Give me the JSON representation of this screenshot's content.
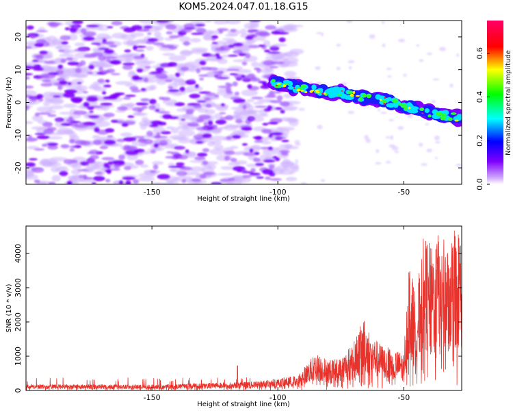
{
  "title": "KOM5.2024.047.01.18.G15",
  "colors": {
    "snr_line": "#e8322c",
    "track_core": "#ffef00",
    "background_blobs": "#7f00ff"
  },
  "chart_data": [
    {
      "type": "heatmap",
      "xlabel": "Height of straight line (km)",
      "ylabel": "Frequency (Hz)",
      "xlim": [
        -200,
        -27
      ],
      "ylim": [
        -25,
        25
      ],
      "xticks": [
        "-150",
        "-100",
        "-50"
      ],
      "xtick_values": [
        -150,
        -100,
        -50
      ],
      "yticks": [
        "20",
        "10",
        "0",
        "-10",
        "-20"
      ],
      "ytick_values": [
        20,
        10,
        0,
        -10,
        -20
      ],
      "grid": false,
      "colorbar": {
        "label": "Normalized spectral amplitude",
        "range": [
          0.0,
          0.75
        ],
        "ticks": [
          "0.0",
          "0.2",
          "0.4",
          "0.6"
        ],
        "tick_values": [
          0.0,
          0.2,
          0.4,
          0.6
        ]
      },
      "track": {
        "x": [
          -102,
          -95,
          -90,
          -85,
          -80,
          -75,
          -70,
          -65,
          -60,
          -55,
          -50,
          -45,
          -40,
          -35,
          -30,
          -27
        ],
        "y": [
          6,
          5,
          4,
          3.5,
          3,
          3,
          2,
          1.5,
          1,
          0,
          -1,
          -2,
          -3,
          -4,
          -4.5,
          -5
        ]
      }
    },
    {
      "type": "line",
      "xlabel": "Height of straight line (km)",
      "ylabel": "SNR (10 * v/v)",
      "xlim": [
        -200,
        -27
      ],
      "ylim": [
        0,
        4800
      ],
      "xticks": [
        "-150",
        "-100",
        "-50"
      ],
      "xtick_values": [
        -150,
        -100,
        -50
      ],
      "yticks": [
        "0",
        "1000",
        "2000",
        "3000",
        "4000"
      ],
      "ytick_values": [
        0,
        1000,
        2000,
        3000,
        4000
      ],
      "grid": false,
      "envelope": {
        "x": [
          -200,
          -150,
          -110,
          -100,
          -92,
          -85,
          -80,
          -75,
          -70,
          -66,
          -62,
          -58,
          -54,
          -50,
          -48,
          -45,
          -42,
          -39,
          -36,
          -33,
          -30,
          -27
        ],
        "y": [
          180,
          170,
          260,
          350,
          450,
          1100,
          900,
          950,
          1400,
          2100,
          1550,
          1300,
          1200,
          1100,
          3800,
          2800,
          4600,
          4200,
          4700,
          4300,
          4800,
          4700
        ]
      }
    }
  ]
}
